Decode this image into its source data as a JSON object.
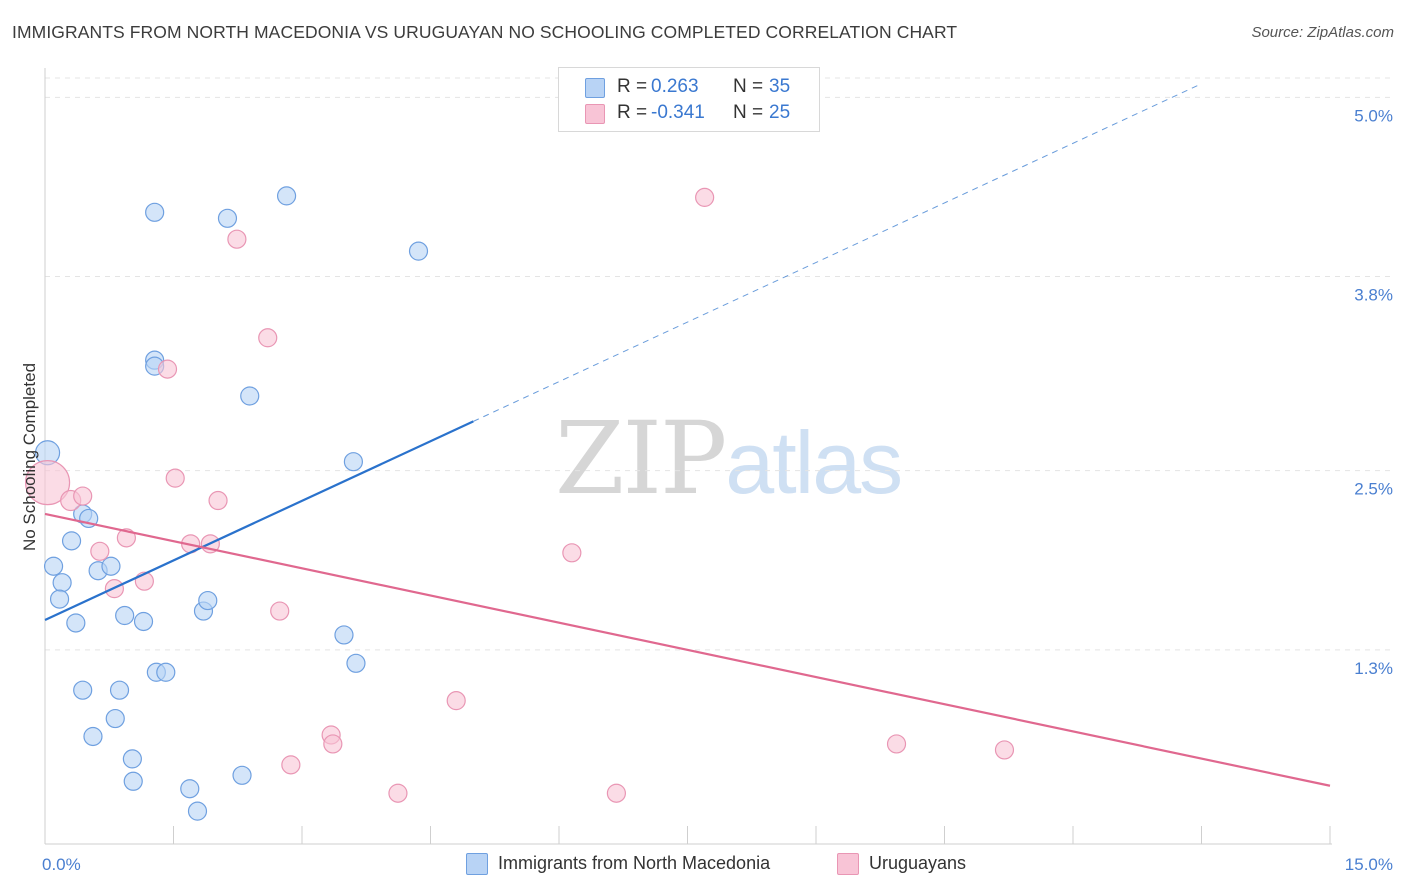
{
  "title": "IMMIGRANTS FROM NORTH MACEDONIA VS URUGUAYAN NO SCHOOLING COMPLETED CORRELATION CHART",
  "source": "Source: ZipAtlas.com",
  "watermark": {
    "zip": "ZIP",
    "atlas": "atlas"
  },
  "colors": {
    "blue_fill": "#b8d3f5",
    "blue_stroke": "#6fa0e0",
    "blue_line": "#2a72cc",
    "pink_fill": "#f8c4d6",
    "pink_stroke": "#e996b4",
    "pink_line": "#e0688f",
    "grid": "#e4e4e4",
    "tick_text": "#4a7fd0"
  },
  "legend": {
    "rows": [
      {
        "r_label": "R =",
        "r_value": "0.263",
        "n_label": "N =",
        "n_value": "35"
      },
      {
        "r_label": "R =",
        "r_value": "-0.341",
        "n_label": "N =",
        "n_value": "25"
      }
    ]
  },
  "bottom_legend": {
    "items": [
      {
        "label": "Immigrants from North Macedonia"
      },
      {
        "label": "Uruguayans"
      }
    ]
  },
  "chart_data": {
    "type": "scatter",
    "title": "IMMIGRANTS FROM NORTH MACEDONIA VS URUGUAYAN NO SCHOOLING COMPLETED CORRELATION CHART",
    "xlabel": "",
    "ylabel": "No Schooling Completed",
    "xlim": [
      0,
      15
    ],
    "ylim": [
      0,
      5.25
    ],
    "x_tick_labels": [
      "0.0%",
      "15.0%"
    ],
    "y_ticks": [
      {
        "value": 1.3,
        "label": "1.3%"
      },
      {
        "value": 2.5,
        "label": "2.5%"
      },
      {
        "value": 3.8,
        "label": "3.8%"
      },
      {
        "value": 5.0,
        "label": "5.0%"
      }
    ],
    "grid": true,
    "legend_position": "top-center",
    "series": [
      {
        "name": "Immigrants from North Macedonia",
        "r": 0.263,
        "n": 35,
        "points": [
          {
            "x": 0.03,
            "y": 2.62,
            "s": 12
          },
          {
            "x": 0.1,
            "y": 1.86,
            "s": 9
          },
          {
            "x": 0.2,
            "y": 1.75,
            "s": 9
          },
          {
            "x": 0.17,
            "y": 1.64,
            "s": 9
          },
          {
            "x": 0.31,
            "y": 2.03,
            "s": 9
          },
          {
            "x": 0.36,
            "y": 1.48,
            "s": 9
          },
          {
            "x": 0.44,
            "y": 2.21,
            "s": 9
          },
          {
            "x": 0.51,
            "y": 2.18,
            "s": 9
          },
          {
            "x": 0.62,
            "y": 1.83,
            "s": 9
          },
          {
            "x": 0.77,
            "y": 1.86,
            "s": 9
          },
          {
            "x": 0.93,
            "y": 1.53,
            "s": 9
          },
          {
            "x": 1.15,
            "y": 1.49,
            "s": 9
          },
          {
            "x": 1.28,
            "y": 3.24,
            "s": 9
          },
          {
            "x": 1.28,
            "y": 4.23,
            "s": 9
          },
          {
            "x": 1.28,
            "y": 3.2,
            "s": 9
          },
          {
            "x": 1.85,
            "y": 1.56,
            "s": 9
          },
          {
            "x": 1.9,
            "y": 1.63,
            "s": 9
          },
          {
            "x": 2.13,
            "y": 4.19,
            "s": 9
          },
          {
            "x": 2.39,
            "y": 3.0,
            "s": 9
          },
          {
            "x": 2.82,
            "y": 4.34,
            "s": 9
          },
          {
            "x": 3.6,
            "y": 2.56,
            "s": 9
          },
          {
            "x": 3.49,
            "y": 1.4,
            "s": 9
          },
          {
            "x": 3.63,
            "y": 1.21,
            "s": 9
          },
          {
            "x": 4.36,
            "y": 3.97,
            "s": 9
          },
          {
            "x": 0.44,
            "y": 1.03,
            "s": 9
          },
          {
            "x": 0.87,
            "y": 1.03,
            "s": 9
          },
          {
            "x": 1.3,
            "y": 1.15,
            "s": 9
          },
          {
            "x": 1.41,
            "y": 1.15,
            "s": 9
          },
          {
            "x": 0.82,
            "y": 0.84,
            "s": 9
          },
          {
            "x": 0.56,
            "y": 0.72,
            "s": 9
          },
          {
            "x": 1.02,
            "y": 0.57,
            "s": 9
          },
          {
            "x": 1.03,
            "y": 0.42,
            "s": 9
          },
          {
            "x": 1.69,
            "y": 0.37,
            "s": 9
          },
          {
            "x": 1.78,
            "y": 0.22,
            "s": 9
          },
          {
            "x": 2.3,
            "y": 0.46,
            "s": 9
          }
        ],
        "trend": {
          "x0": 0.0,
          "y0": 1.5,
          "x1": 5.0,
          "y1": 2.83,
          "dashed_to_x": 13.5
        }
      },
      {
        "name": "Uruguayans",
        "r": -0.341,
        "n": 25,
        "points": [
          {
            "x": 0.03,
            "y": 2.42,
            "s": 22
          },
          {
            "x": 0.3,
            "y": 2.3,
            "s": 10
          },
          {
            "x": 0.44,
            "y": 2.33,
            "s": 9
          },
          {
            "x": 0.64,
            "y": 1.96,
            "s": 9
          },
          {
            "x": 0.81,
            "y": 1.71,
            "s": 9
          },
          {
            "x": 0.95,
            "y": 2.05,
            "s": 9
          },
          {
            "x": 1.16,
            "y": 1.76,
            "s": 9
          },
          {
            "x": 1.43,
            "y": 3.18,
            "s": 9
          },
          {
            "x": 1.52,
            "y": 2.45,
            "s": 9
          },
          {
            "x": 1.7,
            "y": 2.01,
            "s": 9
          },
          {
            "x": 1.93,
            "y": 2.01,
            "s": 9
          },
          {
            "x": 2.02,
            "y": 2.3,
            "s": 9
          },
          {
            "x": 2.24,
            "y": 4.05,
            "s": 9
          },
          {
            "x": 2.6,
            "y": 3.39,
            "s": 9
          },
          {
            "x": 2.74,
            "y": 1.56,
            "s": 9
          },
          {
            "x": 2.87,
            "y": 0.53,
            "s": 9
          },
          {
            "x": 3.34,
            "y": 0.73,
            "s": 9
          },
          {
            "x": 3.36,
            "y": 0.67,
            "s": 9
          },
          {
            "x": 4.12,
            "y": 0.34,
            "s": 9
          },
          {
            "x": 4.8,
            "y": 0.96,
            "s": 9
          },
          {
            "x": 6.15,
            "y": 1.95,
            "s": 9
          },
          {
            "x": 6.67,
            "y": 0.34,
            "s": 9
          },
          {
            "x": 7.7,
            "y": 4.33,
            "s": 9
          },
          {
            "x": 9.94,
            "y": 0.67,
            "s": 9
          },
          {
            "x": 11.2,
            "y": 0.63,
            "s": 9
          }
        ],
        "trend": {
          "x0": 0.0,
          "y0": 2.21,
          "x1": 15.0,
          "y1": 0.39
        }
      }
    ]
  }
}
